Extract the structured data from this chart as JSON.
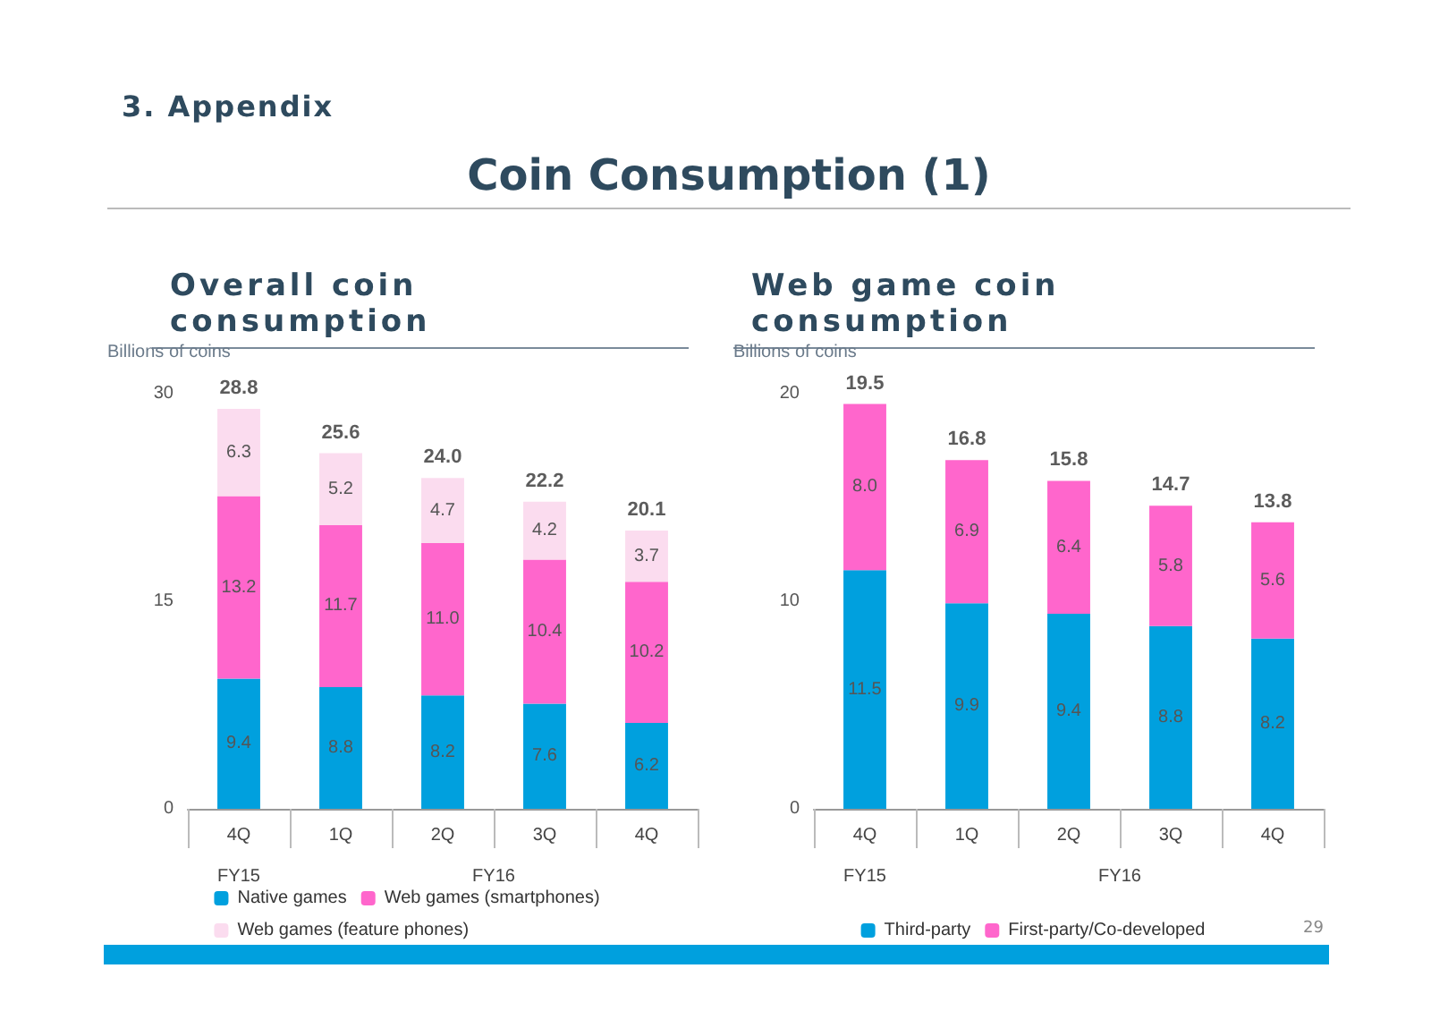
{
  "chart_data": [
    {
      "type": "bar",
      "title": "Overall coin consumption",
      "ylabel": "Billions of coins",
      "stacked": true,
      "categories": [
        "4Q",
        "1Q",
        "2Q",
        "3Q",
        "4Q"
      ],
      "ylim": [
        0,
        30
      ],
      "yticks": [
        0,
        15,
        30
      ],
      "grid": false,
      "legend": "bottom",
      "totals": [
        "28.8",
        "25.6",
        "24.0",
        "22.2",
        "20.1"
      ],
      "annotations": [
        "3. Appendix",
        "Coin Consumption (1)",
        "FY15",
        "FY16"
      ],
      "series": [
        {
          "name": "Native games",
          "color": "#00a0de",
          "values": [
            9.4,
            8.8,
            8.2,
            7.6,
            6.2
          ],
          "value_labels": [
            "9.4",
            "8.8",
            "8.2",
            "7.6",
            "6.2"
          ]
        },
        {
          "name": "Web games (smartphones)",
          "color": "#ff66cc",
          "values": [
            13.2,
            11.7,
            11.0,
            10.4,
            10.2
          ],
          "value_labels": [
            "13.2",
            "11.7",
            "11.0",
            "10.4",
            "10.2"
          ]
        },
        {
          "name": "Web games (feature phones)",
          "color": "#fbdcef",
          "values": [
            6.3,
            5.2,
            4.7,
            4.2,
            3.7
          ],
          "value_labels": [
            "6.3",
            "5.2",
            "4.7",
            "4.2",
            "3.7"
          ]
        }
      ]
    },
    {
      "type": "bar",
      "title": "Web game coin consumption",
      "ylabel": "Billions of coins",
      "stacked": true,
      "categories": [
        "4Q",
        "1Q",
        "2Q",
        "3Q",
        "4Q"
      ],
      "ylim": [
        0,
        20
      ],
      "yticks": [
        0,
        10,
        20
      ],
      "grid": false,
      "legend": "bottom",
      "totals": [
        "19.5",
        "16.8",
        "15.8",
        "14.7",
        "13.8"
      ],
      "annotations": [
        "FY15",
        "FY16",
        "29"
      ],
      "series": [
        {
          "name": "Third-party",
          "color": "#00a0de",
          "values": [
            11.5,
            9.9,
            9.4,
            8.8,
            8.2
          ],
          "value_labels": [
            "11.5",
            "9.9",
            "9.4",
            "8.8",
            "8.2"
          ]
        },
        {
          "name": "First-party/Co-developed",
          "color": "#ff66cc",
          "values": [
            8.0,
            6.9,
            6.4,
            5.8,
            5.6
          ],
          "value_labels": [
            "8.0",
            "6.9",
            "6.4",
            "5.8",
            "5.6"
          ]
        }
      ]
    }
  ]
}
